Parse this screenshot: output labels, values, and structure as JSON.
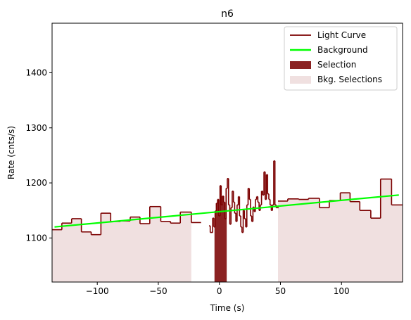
{
  "chart_data": {
    "type": "line",
    "title": "n6",
    "xlabel": "Time (s)",
    "ylabel": "Rate (cnts/s)",
    "xlim": [
      -137,
      150
    ],
    "ylim": [
      1020,
      1490
    ],
    "xticks": [
      -100,
      -50,
      0,
      50,
      100
    ],
    "yticks": [
      1100,
      1200,
      1300,
      1400
    ],
    "grid": false,
    "legend_position": "top-right",
    "legend": [
      {
        "label": "Light Curve",
        "kind": "line",
        "color": "#7b0000"
      },
      {
        "label": "Background",
        "kind": "line",
        "color": "#00ff00"
      },
      {
        "label": "Selection",
        "kind": "patch",
        "color": "#8b2222"
      },
      {
        "label": "Bkg. Selections",
        "kind": "patch",
        "color": "#f0e0e0"
      }
    ],
    "light_curve_wide": [
      {
        "x0": -137,
        "x1": -129,
        "y": 1115
      },
      {
        "x0": -129,
        "x1": -121,
        "y": 1127
      },
      {
        "x0": -121,
        "x1": -113,
        "y": 1135
      },
      {
        "x0": -113,
        "x1": -105,
        "y": 1111
      },
      {
        "x0": -105,
        "x1": -97,
        "y": 1106
      },
      {
        "x0": -97,
        "x1": -89,
        "y": 1145
      },
      {
        "x0": -89,
        "x1": -81,
        "y": 1130
      },
      {
        "x0": -81,
        "x1": -73,
        "y": 1131
      },
      {
        "x0": -73,
        "x1": -65,
        "y": 1138
      },
      {
        "x0": -65,
        "x1": -57,
        "y": 1126
      },
      {
        "x0": -57,
        "x1": -48,
        "y": 1157
      },
      {
        "x0": -48,
        "x1": -40,
        "y": 1130
      },
      {
        "x0": -40,
        "x1": -32,
        "y": 1127
      },
      {
        "x0": -32,
        "x1": -23,
        "y": 1147
      },
      {
        "x0": -23,
        "x1": -15,
        "y": 1128
      },
      {
        "x0": 48,
        "x1": 56,
        "y": 1167
      },
      {
        "x0": 56,
        "x1": 65,
        "y": 1171
      },
      {
        "x0": 65,
        "x1": 73,
        "y": 1170
      },
      {
        "x0": 73,
        "x1": 82,
        "y": 1172
      },
      {
        "x0": 82,
        "x1": 90,
        "y": 1155
      },
      {
        "x0": 90,
        "x1": 99,
        "y": 1168
      },
      {
        "x0": 99,
        "x1": 107,
        "y": 1182
      },
      {
        "x0": 107,
        "x1": 115,
        "y": 1166
      },
      {
        "x0": 115,
        "x1": 124,
        "y": 1150
      },
      {
        "x0": 124,
        "x1": 132,
        "y": 1136
      },
      {
        "x0": 132,
        "x1": 141,
        "y": 1207
      },
      {
        "x0": 141,
        "x1": 150,
        "y": 1160
      }
    ],
    "light_curve_fine": [
      {
        "x": -8,
        "y": 1122
      },
      {
        "x": -7,
        "y": 1110
      },
      {
        "x": -6,
        "y": 1110
      },
      {
        "x": -5,
        "y": 1136
      },
      {
        "x": -4,
        "y": 1120
      },
      {
        "x": -3,
        "y": 1149
      },
      {
        "x": -2,
        "y": 1163
      },
      {
        "x": -1,
        "y": 1170
      },
      {
        "x": 0,
        "y": 1140
      },
      {
        "x": 1,
        "y": 1195
      },
      {
        "x": 2,
        "y": 1160
      },
      {
        "x": 3,
        "y": 1176
      },
      {
        "x": 4,
        "y": 1165
      },
      {
        "x": 5,
        "y": 1135
      },
      {
        "x": 6,
        "y": 1190
      },
      {
        "x": 7,
        "y": 1208
      },
      {
        "x": 8,
        "y": 1160
      },
      {
        "x": 9,
        "y": 1125
      },
      {
        "x": 10,
        "y": 1155
      },
      {
        "x": 11,
        "y": 1185
      },
      {
        "x": 12,
        "y": 1165
      },
      {
        "x": 13,
        "y": 1145
      },
      {
        "x": 14,
        "y": 1130
      },
      {
        "x": 15,
        "y": 1160
      },
      {
        "x": 16,
        "y": 1175
      },
      {
        "x": 17,
        "y": 1140
      },
      {
        "x": 18,
        "y": 1120
      },
      {
        "x": 19,
        "y": 1110
      },
      {
        "x": 20,
        "y": 1150
      },
      {
        "x": 21,
        "y": 1135
      },
      {
        "x": 22,
        "y": 1120
      },
      {
        "x": 23,
        "y": 1160
      },
      {
        "x": 24,
        "y": 1190
      },
      {
        "x": 25,
        "y": 1170
      },
      {
        "x": 26,
        "y": 1140
      },
      {
        "x": 27,
        "y": 1130
      },
      {
        "x": 28,
        "y": 1156
      },
      {
        "x": 29,
        "y": 1148
      },
      {
        "x": 30,
        "y": 1170
      },
      {
        "x": 31,
        "y": 1175
      },
      {
        "x": 32,
        "y": 1165
      },
      {
        "x": 33,
        "y": 1150
      },
      {
        "x": 34,
        "y": 1160
      },
      {
        "x": 35,
        "y": 1185
      },
      {
        "x": 36,
        "y": 1178
      },
      {
        "x": 37,
        "y": 1220
      },
      {
        "x": 38,
        "y": 1170
      },
      {
        "x": 39,
        "y": 1215
      },
      {
        "x": 40,
        "y": 1180
      },
      {
        "x": 41,
        "y": 1170
      },
      {
        "x": 42,
        "y": 1160
      },
      {
        "x": 43,
        "y": 1150
      },
      {
        "x": 44,
        "y": 1160
      },
      {
        "x": 45,
        "y": 1240
      },
      {
        "x": 46,
        "y": 1160
      },
      {
        "x": 47,
        "y": 1155
      },
      {
        "x": 48,
        "y": 1155
      }
    ],
    "background_line": {
      "x": [
        -135,
        147
      ],
      "y": [
        1120,
        1178
      ]
    },
    "selection_interval": [
      -4,
      6
    ],
    "bkg_selection_intervals": [
      [
        -137,
        -23
      ],
      [
        48,
        150
      ]
    ]
  }
}
